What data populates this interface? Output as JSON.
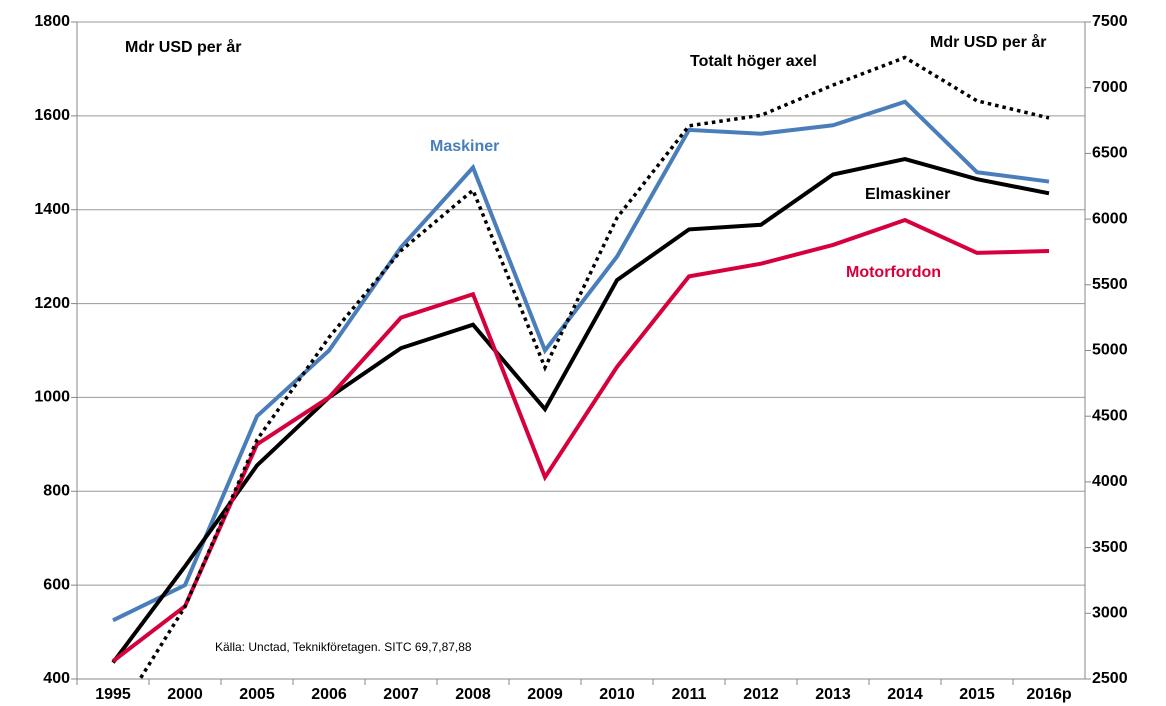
{
  "chart_data": {
    "type": "line",
    "categories": [
      "1995",
      "2000",
      "2005",
      "2006",
      "2007",
      "2008",
      "2009",
      "2010",
      "2011",
      "2012",
      "2013",
      "2014",
      "2015",
      "2016p"
    ],
    "series": [
      {
        "name": "Maskiner",
        "color": "#4a7ebb",
        "values": [
          525,
          600,
          960,
          1100,
          1320,
          1490,
          1100,
          1300,
          1570,
          1562,
          1580,
          1630,
          1480,
          1460
        ]
      },
      {
        "name": "Elmaskiner",
        "color": "#000000",
        "values": [
          435,
          640,
          855,
          1000,
          1105,
          1155,
          975,
          1250,
          1358,
          1368,
          1475,
          1508,
          1465,
          1435
        ]
      },
      {
        "name": "Motorfordon",
        "color": "#d6003c",
        "values": [
          438,
          555,
          900,
          1000,
          1170,
          1220,
          830,
          1065,
          1258,
          1285,
          1325,
          1378,
          1308,
          1312
        ]
      },
      {
        "name": "Totalt höger axel",
        "color": "#000000",
        "axis": "y2",
        "dashed": true,
        "values": [
          2170,
          3050,
          4320,
          5100,
          5760,
          6220,
          4870,
          6010,
          6710,
          6790,
          7020,
          7230,
          6900,
          6770
        ]
      }
    ],
    "ylim": [
      400,
      1800
    ],
    "yticks": [
      400,
      600,
      800,
      1000,
      1200,
      1400,
      1600,
      1800
    ],
    "y2lim": [
      2500,
      7500
    ],
    "y2ticks": [
      2500,
      3000,
      3500,
      4000,
      4500,
      5000,
      5500,
      6000,
      6500,
      7000,
      7500
    ],
    "grid": true,
    "annotations": [
      "Mdr USD per år",
      "Mdr USD per år",
      "Källa: Unctad, Teknikföretagen.  SITC 69,7,87,88"
    ]
  }
}
